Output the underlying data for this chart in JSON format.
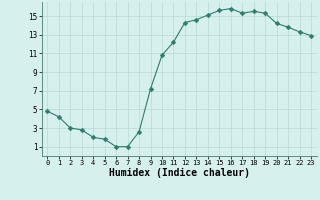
{
  "x": [
    0,
    1,
    2,
    3,
    4,
    5,
    6,
    7,
    8,
    9,
    10,
    11,
    12,
    13,
    14,
    15,
    16,
    17,
    18,
    19,
    20,
    21,
    22,
    23
  ],
  "y": [
    4.8,
    4.2,
    3.0,
    2.8,
    2.0,
    1.8,
    1.0,
    1.0,
    2.6,
    7.2,
    10.8,
    12.2,
    14.3,
    14.6,
    15.1,
    15.6,
    15.8,
    15.3,
    15.5,
    15.3,
    14.2,
    13.8,
    13.3,
    12.9
  ],
  "line_color": "#2e7d6e",
  "marker": "D",
  "marker_size": 2.5,
  "bg_color": "#d6f0ed",
  "grid_color": "#b8d8d4",
  "xlabel": "Humidex (Indice chaleur)",
  "xlim": [
    -0.5,
    23.5
  ],
  "ylim": [
    0,
    16.5
  ],
  "yticks": [
    1,
    3,
    5,
    7,
    9,
    11,
    13,
    15
  ],
  "xticks": [
    0,
    1,
    2,
    3,
    4,
    5,
    6,
    7,
    8,
    9,
    10,
    11,
    12,
    13,
    14,
    15,
    16,
    17,
    18,
    19,
    20,
    21,
    22,
    23
  ]
}
